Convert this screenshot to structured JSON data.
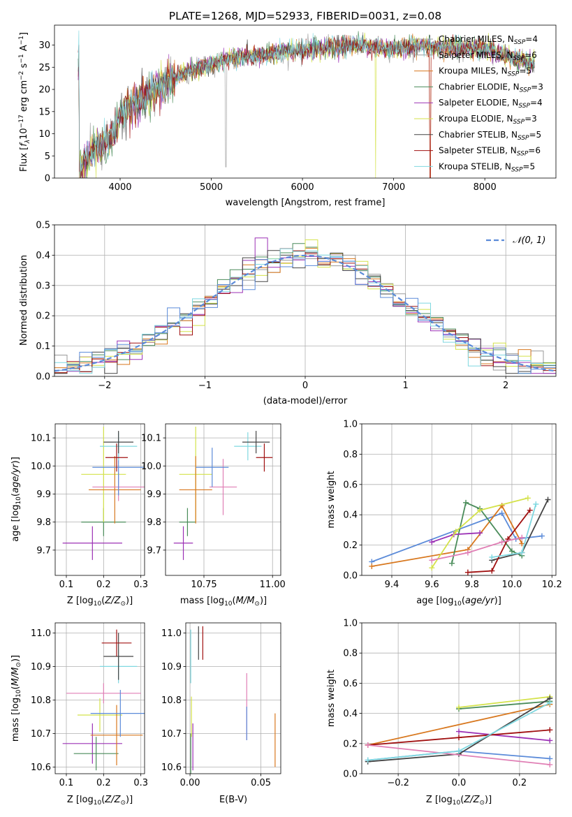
{
  "chart_data": [
    {
      "type": "line",
      "title": "PLATE=1268, MJD=52933, FIBERID=0031, z=0.08",
      "xlabel": "wavelength [Angstrom, rest frame]",
      "ylabel": "Flux [f_λ10^-17 erg cm^-2 s^-1 A^-1]",
      "xlim": [
        3280,
        8780
      ],
      "ylim": [
        0,
        34.5
      ],
      "xticks": [
        4000,
        5000,
        6000,
        7000,
        8000
      ],
      "yticks": [
        0,
        5,
        10,
        15,
        20,
        25,
        30
      ],
      "legend_position": "right",
      "series": [
        {
          "name": "Chabrier MILES, N_SSP=4",
          "color": "#9a9a9a"
        },
        {
          "name": "Salpeter MILES, N_SSP=6",
          "color": "#9c9c9c"
        },
        {
          "name": "Kroupa MILES, N_SSP=5",
          "color": "#d8781f"
        },
        {
          "name": "Chabrier ELODIE, N_SSP=3",
          "color": "#4a8c5a"
        },
        {
          "name": "Salpeter ELODIE, N_SSP=4",
          "color": "#9b30b5"
        },
        {
          "name": "Kroupa ELODIE, N_SSP=3",
          "color": "#d4e24a"
        },
        {
          "name": "Chabrier STELIB, N_SSP=5",
          "color": "#444444"
        },
        {
          "name": "Salpeter STELIB, N_SSP=6",
          "color": "#a01010"
        },
        {
          "name": "Kroupa STELIB, N_SSP=5",
          "color": "#7fd8e0"
        }
      ],
      "continuum": {
        "x": [
          3550,
          3700,
          3900,
          4000,
          4200,
          4400,
          4600,
          4800,
          5000,
          5200,
          5500,
          5800,
          6000,
          6300,
          6600,
          7000,
          7300,
          7600,
          8000,
          8200,
          8500
        ],
        "y": [
          2,
          6,
          9,
          14,
          17,
          20,
          22.5,
          24.5,
          25.5,
          27,
          27.5,
          28.5,
          29,
          29.5,
          30,
          29,
          30,
          29.5,
          29,
          28,
          26
        ]
      }
    },
    {
      "type": "line",
      "xlabel": "(data-model)/error",
      "ylabel": "Normed distribution",
      "xlim": [
        -2.5,
        2.5
      ],
      "ylim": [
        0,
        0.5
      ],
      "xticks": [
        -2,
        -1,
        0,
        1,
        2
      ],
      "yticks": [
        0.0,
        0.1,
        0.2,
        0.3,
        0.4,
        0.5
      ],
      "legend": [
        {
          "name": "𝒩(0, 1)",
          "color": "#5b8bd9",
          "style": "dashed"
        }
      ],
      "hist_colors": [
        "#9a9a9a",
        "#d8781f",
        "#4a8c5a",
        "#9b30b5",
        "#d4e24a",
        "#444444",
        "#a01010",
        "#7fd8e0",
        "#5b8bd9"
      ]
    },
    {
      "type": "scatter",
      "xlabel": "Z [log10(Z/Z⊙)]",
      "ylabel": "age [log10(age/yr)]",
      "xlim": [
        0.07,
        0.31
      ],
      "ylim": [
        9.61,
        10.15
      ],
      "xticks": [
        0.1,
        0.2,
        0.3
      ],
      "yticks": [
        9.7,
        9.8,
        9.9,
        10.0,
        10.1
      ]
    },
    {
      "type": "scatter",
      "xlabel": "mass [log10(M/M⊙)]",
      "ylabel": "",
      "xlim": [
        10.61,
        11.03
      ],
      "ylim": [
        9.61,
        10.15
      ],
      "xticks": [
        10.75,
        11.0
      ],
      "yticks": [
        9.7,
        9.8,
        9.9,
        10.0,
        10.1
      ]
    },
    {
      "type": "line",
      "xlabel": "age [log10(age/yr)]",
      "ylabel": "mass weight",
      "xlim": [
        9.25,
        10.22
      ],
      "ylim": [
        0,
        1.0
      ],
      "xticks": [
        9.4,
        9.6,
        9.8,
        10.0,
        10.2
      ],
      "yticks": [
        0.0,
        0.2,
        0.4,
        0.6,
        0.8,
        1.0
      ],
      "series": [
        {
          "color": "#5b8bd9",
          "x": [
            9.3,
            9.95,
            10.02,
            10.15
          ],
          "y": [
            0.09,
            0.41,
            0.24,
            0.26
          ]
        },
        {
          "color": "#d8781f",
          "x": [
            9.3,
            9.78,
            9.95,
            10.05
          ],
          "y": [
            0.06,
            0.17,
            0.46,
            0.21
          ]
        },
        {
          "color": "#4a8c5a",
          "x": [
            9.7,
            9.77,
            9.84,
            10.0,
            10.05
          ],
          "y": [
            0.08,
            0.48,
            0.44,
            0.16,
            0.13
          ]
        },
        {
          "color": "#9b30b5",
          "x": [
            9.6,
            9.71,
            9.84
          ],
          "y": [
            0.22,
            0.27,
            0.28
          ]
        },
        {
          "color": "#d4e24a",
          "x": [
            9.6,
            9.72,
            9.84,
            10.08
          ],
          "y": [
            0.05,
            0.29,
            0.43,
            0.51
          ]
        },
        {
          "color": "#444444",
          "x": [
            9.9,
            10.05,
            10.18
          ],
          "y": [
            0.1,
            0.15,
            0.5
          ]
        },
        {
          "color": "#a01010",
          "x": [
            9.78,
            9.9,
            9.98,
            10.09
          ],
          "y": [
            0.02,
            0.03,
            0.24,
            0.43
          ]
        },
        {
          "color": "#e07fb5",
          "x": [
            9.6,
            9.78,
            9.95,
            10.05
          ],
          "y": [
            0.1,
            0.15,
            0.22,
            0.25
          ]
        },
        {
          "color": "#7fd8e0",
          "x": [
            9.9,
            10.05,
            10.12
          ],
          "y": [
            0.12,
            0.15,
            0.47
          ]
        }
      ]
    },
    {
      "type": "scatter",
      "xlabel": "Z [log10(Z/Z⊙)]",
      "ylabel": "mass [log10(M/M⊙)]",
      "xlim": [
        0.07,
        0.31
      ],
      "ylim": [
        10.58,
        11.03
      ],
      "xticks": [
        0.1,
        0.2,
        0.3
      ],
      "yticks": [
        10.6,
        10.7,
        10.8,
        10.9,
        11.0
      ]
    },
    {
      "type": "scatter",
      "xlabel": "E(B-V)",
      "ylabel": "",
      "xlim": [
        -0.003,
        0.064
      ],
      "ylim": [
        10.58,
        11.03
      ],
      "xticks": [
        0.0,
        0.05
      ],
      "yticks": [
        10.6,
        10.7,
        10.8,
        10.9,
        11.0
      ]
    },
    {
      "type": "line",
      "xlabel": "Z [log10(Z/Z⊙)]",
      "ylabel": "mass weight",
      "xlim": [
        -0.32,
        0.32
      ],
      "ylim": [
        0,
        1.0
      ],
      "xticks": [
        -0.2,
        0.0,
        0.2
      ],
      "yticks": [
        0.0,
        0.2,
        0.4,
        0.6,
        0.8,
        1.0
      ],
      "series": [
        {
          "color": "#5b8bd9",
          "x": [
            -0.3,
            0.0,
            0.3
          ],
          "y": [
            0.09,
            0.15,
            0.1
          ]
        },
        {
          "color": "#d8781f",
          "x": [
            -0.3,
            0.3
          ],
          "y": [
            0.19,
            0.46
          ]
        },
        {
          "color": "#4a8c5a",
          "x": [
            0.0,
            0.3
          ],
          "y": [
            0.43,
            0.48
          ]
        },
        {
          "color": "#9b30b5",
          "x": [
            0.0,
            0.3
          ],
          "y": [
            0.28,
            0.22
          ]
        },
        {
          "color": "#d4e24a",
          "x": [
            0.0,
            0.3
          ],
          "y": [
            0.44,
            0.51
          ]
        },
        {
          "color": "#444444",
          "x": [
            -0.3,
            0.0,
            0.3
          ],
          "y": [
            0.08,
            0.13,
            0.5
          ]
        },
        {
          "color": "#a01010",
          "x": [
            -0.3,
            0.0,
            0.3
          ],
          "y": [
            0.19,
            0.24,
            0.29
          ]
        },
        {
          "color": "#e07fb5",
          "x": [
            -0.3,
            0.3
          ],
          "y": [
            0.19,
            0.06
          ]
        },
        {
          "color": "#7fd8e0",
          "x": [
            -0.3,
            0.0,
            0.3
          ],
          "y": [
            0.09,
            0.15,
            0.47
          ]
        }
      ]
    }
  ]
}
